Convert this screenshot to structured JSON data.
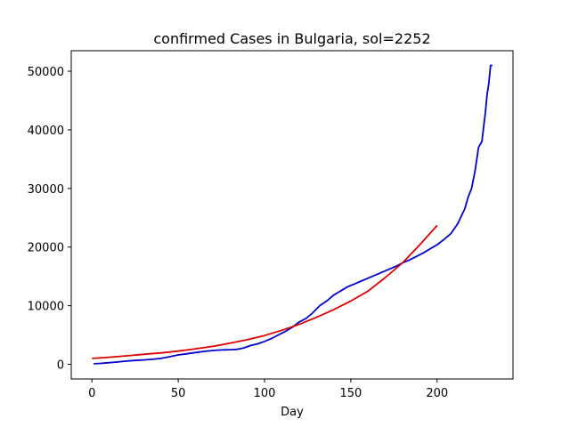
{
  "chart_data": {
    "type": "line",
    "title": "confirmed Cases in Bulgaria, sol=2252",
    "xlabel": "Day",
    "ylabel": "",
    "xlim": [
      -12,
      244
    ],
    "ylim": [
      -2500,
      53500
    ],
    "xticks": [
      0,
      50,
      100,
      150,
      200
    ],
    "yticks": [
      0,
      10000,
      20000,
      30000,
      40000,
      50000
    ],
    "grid": false,
    "series": [
      {
        "color": "#0000cc",
        "x": [
          1,
          5,
          10,
          15,
          20,
          25,
          30,
          35,
          40,
          45,
          50,
          55,
          60,
          65,
          70,
          75,
          80,
          84,
          88,
          92,
          96,
          100,
          104,
          108,
          112,
          116,
          120,
          124,
          128,
          132,
          136,
          140,
          144,
          148,
          152,
          156,
          160,
          164,
          168,
          172,
          176,
          180,
          184,
          188,
          192,
          196,
          200,
          204,
          208,
          212,
          216,
          218,
          220,
          222,
          224,
          226,
          228,
          229,
          230,
          231,
          232
        ],
        "y": [
          100,
          150,
          280,
          400,
          550,
          650,
          750,
          850,
          1000,
          1300,
          1600,
          1800,
          2000,
          2200,
          2350,
          2450,
          2500,
          2550,
          2800,
          3200,
          3500,
          3900,
          4400,
          5000,
          5600,
          6300,
          7200,
          7800,
          8800,
          10000,
          10800,
          11800,
          12500,
          13200,
          13700,
          14200,
          14700,
          15200,
          15700,
          16200,
          16700,
          17300,
          17800,
          18400,
          19000,
          19700,
          20400,
          21300,
          22300,
          24000,
          26500,
          28500,
          30000,
          33000,
          37000,
          38000,
          43000,
          46000,
          48000,
          51000,
          51000
        ]
      },
      {
        "color": "#dd0000",
        "x": [
          0,
          10,
          20,
          30,
          40,
          50,
          60,
          70,
          80,
          90,
          100,
          110,
          120,
          130,
          140,
          150,
          160,
          170,
          180,
          190,
          200
        ],
        "y": [
          1000,
          1200,
          1450,
          1700,
          1950,
          2250,
          2650,
          3050,
          3600,
          4200,
          4900,
          5800,
          6800,
          8000,
          9300,
          10800,
          12500,
          14800,
          17300,
          20400,
          23700
        ]
      }
    ]
  }
}
